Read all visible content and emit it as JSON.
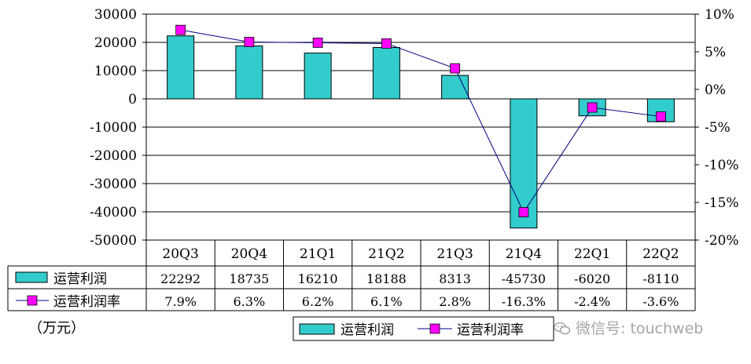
{
  "chart_data": {
    "type": "bar",
    "categories": [
      "20Q3",
      "20Q4",
      "21Q1",
      "21Q2",
      "21Q3",
      "21Q4",
      "22Q1",
      "22Q2"
    ],
    "series": [
      {
        "name": "运营利润",
        "kind": "bar",
        "axis": "left",
        "color": "#33cccc",
        "values": [
          22292,
          18735,
          16210,
          18188,
          8313,
          -45730,
          -6020,
          -8110
        ],
        "table_labels": [
          "22292",
          "18735",
          "16210",
          "18188",
          "8313",
          "-45730",
          "-6020",
          "-8110"
        ]
      },
      {
        "name": "运营利润率",
        "kind": "line",
        "axis": "right",
        "color": "#ff00ff",
        "line_color": "#000080",
        "values": [
          7.9,
          6.3,
          6.2,
          6.1,
          2.8,
          -16.3,
          -2.4,
          -3.6
        ],
        "table_labels": [
          "7.9%",
          "6.3%",
          "6.2%",
          "6.1%",
          "2.8%",
          "-16.3%",
          "-2.4%",
          "-3.6%"
        ]
      }
    ],
    "ylim": [
      -50000,
      30000
    ],
    "yticks": [
      "30000",
      "20000",
      "10000",
      "0",
      "-10000",
      "-20000",
      "-30000",
      "-40000",
      "-50000"
    ],
    "y2lim": [
      -20,
      10
    ],
    "y2ticks": [
      "10%",
      "5%",
      "0%",
      "-5%",
      "-10%",
      "-15%",
      "-20%"
    ],
    "grid": true,
    "legend_position": "bottom",
    "unit_label": "（万元）"
  },
  "watermark": {
    "text": "微信号: touchweb",
    "icon": "wechat-icon"
  }
}
